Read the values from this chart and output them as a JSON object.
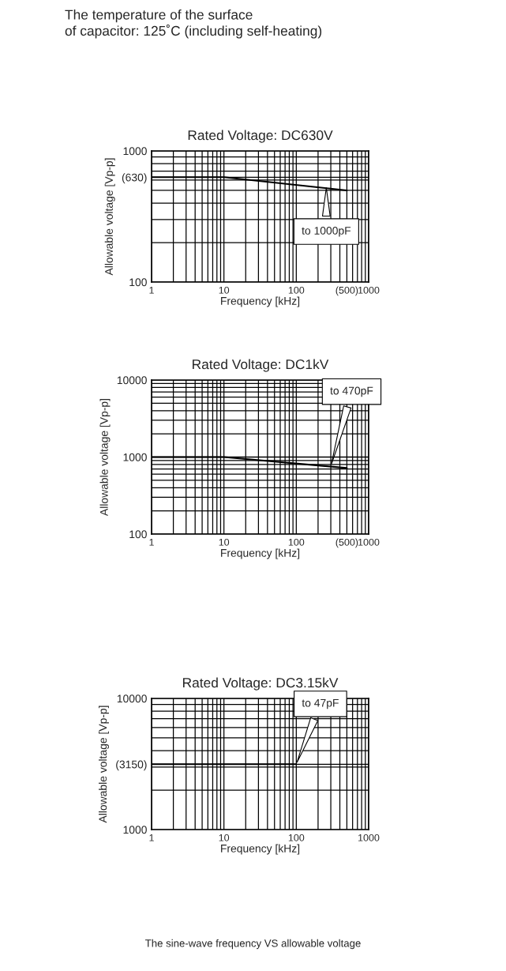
{
  "chart_data": [
    {
      "type": "line",
      "title": "Rated Voltage: DC630V",
      "xlabel": "Frequency [kHz]",
      "ylabel": "Allowable voltage [Vp-p]",
      "log": "xy",
      "grid": true,
      "xlim": [
        1,
        1000
      ],
      "ylim": [
        100,
        1000
      ],
      "xticks": [
        1,
        10,
        100,
        {
          "value": 500,
          "label": "(500)"
        },
        1000
      ],
      "yticks": [
        100,
        {
          "value": 630,
          "label": "(630)"
        },
        1000
      ],
      "series": [
        {
          "color": "#000000",
          "x": [
            1,
            10,
            500
          ],
          "values": [
            630,
            630,
            500
          ]
        }
      ],
      "annotations": [
        "The temperature of the surface\nof capacitor: 125˚C (including self-heating)",
        {
          "text": "to 1000pF",
          "x": 260,
          "y": 545
        }
      ]
    },
    {
      "type": "line",
      "title": "Rated Voltage: DC1kV",
      "xlabel": "Frequency [kHz]",
      "ylabel": "Allowable voltage [Vp-p]",
      "log": "xy",
      "grid": true,
      "xlim": [
        1,
        1000
      ],
      "ylim": [
        100,
        10000
      ],
      "xticks": [
        1,
        10,
        100,
        {
          "value": 500,
          "label": "(500)"
        },
        1000
      ],
      "yticks": [
        100,
        1000,
        10000
      ],
      "series": [
        {
          "color": "#000000",
          "x": [
            1,
            10,
            500
          ],
          "values": [
            1000,
            1000,
            720
          ]
        }
      ],
      "annotations": [
        {
          "text": "to 470pF",
          "x": 300,
          "y": 760
        }
      ]
    },
    {
      "type": "line",
      "title": "Rated Voltage: DC3.15kV",
      "xlabel": "Frequency [kHz]",
      "ylabel": "Allowable voltage [Vp-p]",
      "log": "xy",
      "grid": true,
      "xlim": [
        1,
        1000
      ],
      "ylim": [
        1000,
        10000
      ],
      "xticks": [
        1,
        10,
        100,
        1000
      ],
      "yticks": [
        1000,
        {
          "value": 3150,
          "label": "(3150)"
        },
        10000
      ],
      "series": [
        {
          "color": "#000000",
          "x": [
            1,
            100
          ],
          "values": [
            3150,
            3150
          ]
        }
      ],
      "annotations": [
        "The sine-wave frequency VS allowable voltage",
        {
          "text": "to 47pF",
          "x": 100,
          "y": 3150
        }
      ]
    }
  ]
}
